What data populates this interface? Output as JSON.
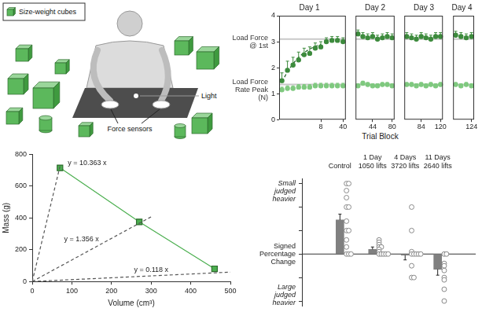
{
  "illustration": {
    "labels": {
      "cubes": "Size-weight cubes",
      "sensors": "Force sensors",
      "light": "Light"
    }
  },
  "chart_data": [
    {
      "type": "line",
      "xlabel": "Trial Block",
      "ylabel": "(N)",
      "ylim": [
        0,
        4
      ],
      "yticks": [
        0,
        1,
        2,
        3,
        4
      ],
      "reference_lines": [
        3.1,
        1.35
      ],
      "panels": [
        {
          "title": "Day 1",
          "categories": [
            null,
            null,
            null,
            null,
            null,
            null,
            null,
            "8",
            null,
            null,
            null,
            "40"
          ],
          "series": [
            {
              "name": "Load Force @ 1st",
              "color": "#3d8b3d",
              "marker": "circle",
              "values": [
                1.5,
                1.9,
                2.1,
                2.3,
                2.5,
                2.55,
                2.75,
                2.8,
                3.0,
                3.05,
                3.05,
                3.0
              ],
              "errors": [
                0.3,
                0.35,
                0.3,
                0.3,
                0.25,
                0.25,
                0.2,
                0.2,
                0.15,
                0.15,
                0.15,
                0.15
              ]
            },
            {
              "name": "Load Force Rate Peak",
              "color": "#7fc97f",
              "marker": "circle",
              "values": [
                1.15,
                1.2,
                1.2,
                1.25,
                1.25,
                1.25,
                1.3,
                1.3,
                1.3,
                1.3,
                1.3,
                1.3
              ],
              "errors": [
                0.1,
                0.1,
                0.1,
                0.1,
                0.1,
                0.1,
                0.1,
                0.1,
                0.1,
                0.1,
                0.1,
                0.1
              ]
            },
            {
              "color": "#1b5e20",
              "marker": "none",
              "line_style": "dashed",
              "values": [
                1.45,
                1.85,
                2.15,
                2.4,
                2.58,
                2.72,
                2.82,
                2.9,
                null,
                null,
                null,
                null
              ]
            }
          ]
        },
        {
          "title": "Day 2",
          "tick_labels": "x",
          "categories": [
            null,
            null,
            null,
            "44",
            null,
            null,
            null,
            "80"
          ],
          "series": [
            {
              "color": "#3d8b3d",
              "marker": "circle",
              "values": [
                3.3,
                3.2,
                3.15,
                3.2,
                3.1,
                3.15,
                3.2,
                3.15
              ],
              "errors": [
                0.15,
                0.15,
                0.15,
                0.15,
                0.15,
                0.15,
                0.15,
                0.15
              ]
            },
            {
              "color": "#7fc97f",
              "marker": "circle",
              "values": [
                1.3,
                1.4,
                1.35,
                1.3,
                1.3,
                1.35,
                1.35,
                1.3
              ],
              "errors": [
                0.08,
                0.08,
                0.08,
                0.08,
                0.08,
                0.08,
                0.08,
                0.08
              ]
            }
          ]
        },
        {
          "title": "Day 3",
          "tick_labels": "x",
          "categories": [
            null,
            null,
            null,
            "84",
            null,
            null,
            null,
            "120"
          ],
          "series": [
            {
              "color": "#3d8b3d",
              "marker": "circle",
              "values": [
                3.2,
                3.15,
                3.1,
                3.2,
                3.15,
                3.1,
                3.2,
                3.2
              ],
              "errors": [
                0.15,
                0.15,
                0.15,
                0.15,
                0.15,
                0.15,
                0.15,
                0.15
              ]
            },
            {
              "color": "#7fc97f",
              "marker": "circle",
              "values": [
                1.35,
                1.35,
                1.3,
                1.35,
                1.3,
                1.35,
                1.3,
                1.35
              ],
              "errors": [
                0.08,
                0.08,
                0.08,
                0.08,
                0.08,
                0.08,
                0.08,
                0.08
              ]
            }
          ]
        },
        {
          "title": "Day 4",
          "tick_labels": "x",
          "categories": [
            null,
            null,
            null,
            "124"
          ],
          "series": [
            {
              "color": "#3d8b3d",
              "marker": "circle",
              "values": [
                3.25,
                3.2,
                3.15,
                3.2
              ],
              "errors": [
                0.15,
                0.15,
                0.15,
                0.15
              ]
            },
            {
              "color": "#7fc97f",
              "marker": "circle",
              "values": [
                1.35,
                1.3,
                1.35,
                1.3
              ],
              "errors": [
                0.08,
                0.08,
                0.08,
                0.08
              ]
            }
          ]
        }
      ]
    },
    {
      "type": "scatter",
      "xlabel": "Volume (cm³)",
      "ylabel": "Mass (g)",
      "xlim": [
        0,
        500
      ],
      "xticks": [
        0,
        100,
        200,
        300,
        400,
        500
      ],
      "ylim": [
        0,
        800
      ],
      "yticks": [
        0,
        200,
        400,
        600,
        800
      ],
      "series": [
        {
          "x": [
            0,
            70
          ],
          "y": [
            0,
            725
          ],
          "color": "#555555",
          "marker": "none",
          "line_style": "dashed",
          "annotation": "y = 10.363 x"
        },
        {
          "x": [
            0,
            300
          ],
          "y": [
            0,
            407
          ],
          "color": "#555555",
          "marker": "none",
          "line_style": "dashed",
          "annotation": "y = 1.356 x"
        },
        {
          "x": [
            0,
            500
          ],
          "y": [
            0,
            59
          ],
          "color": "#555555",
          "marker": "none",
          "line_style": "dashed",
          "annotation": "y = 0.118 x"
        },
        {
          "x": [
            70,
            270,
            460
          ],
          "y": [
            715,
            375,
            80
          ],
          "color": "#4caf50",
          "marker": "square",
          "line_style": "solid"
        }
      ]
    },
    {
      "type": "bar",
      "ylabel": "Signed Percentage Change",
      "annotations": [
        "Small judged heavier",
        "Large judged heavier"
      ],
      "categories": [
        "Control",
        "1 Day",
        "4 Days",
        "11 Days"
      ],
      "category_notes": [
        null,
        "1050 lifts",
        "3720 lifts",
        "2640 lifts"
      ],
      "values": [
        145,
        20,
        -5,
        -65
      ],
      "errors": [
        25,
        10,
        20,
        25
      ],
      "color": "#808080",
      "points": [
        [
          300,
          300,
          270,
          240,
          200,
          200,
          140,
          100,
          100,
          60,
          30,
          0,
          0,
          0
        ],
        [
          60,
          50,
          40,
          30,
          30,
          20,
          10,
          0,
          0,
          0,
          0,
          0
        ],
        [
          200,
          100,
          10,
          0,
          0,
          0,
          0,
          0,
          -50,
          -100,
          -100
        ],
        [
          0,
          0,
          -40,
          -50,
          -70,
          -100,
          -110,
          -150,
          -200
        ]
      ],
      "ylim": [
        -220,
        320
      ],
      "yticks": [
        -200,
        -100,
        0,
        100,
        200,
        300
      ],
      "tick_labels": "x"
    }
  ]
}
